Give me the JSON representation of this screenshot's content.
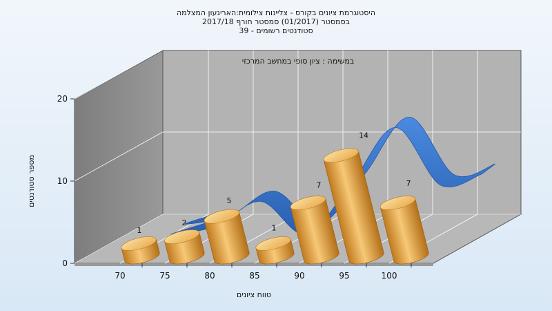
{
  "title_lines": [
    "היסטוגרמת ציונים בקורס - צליינות צילומית:האריגעון המצלמה",
    "בסמסטר (01/2017) סמסטר חורף 2017/18",
    "סטודנטים רשומים - 39"
  ],
  "chart_data": {
    "type": "bar",
    "title": "היסטוגרמת ציונים בקורס - צליינות צילומית:האריגעון המצלמה",
    "subtitle": "במשימה : ציון סופי במחשב המרכזי",
    "xlabel": "טווח ציונים",
    "ylabel": "מספר סטודנטים",
    "x_ticks": [
      "70",
      "75",
      "80",
      "85",
      "90",
      "95",
      "100"
    ],
    "y_ticks": [
      "0",
      "10",
      "20"
    ],
    "ylim": [
      0,
      20
    ],
    "values": [
      1,
      2,
      5,
      1,
      7,
      14,
      7
    ],
    "data_labels": [
      "1",
      "2",
      "5",
      "1",
      "7",
      "14",
      "7"
    ],
    "style": "3d-cylinder-with-curve",
    "grid": true,
    "colors": {
      "bar": "#e09a3a",
      "bar_top": "#f3c46e",
      "curve": "#2f6fc4",
      "wall": "#8c8c8c",
      "floor": "#b0b0b0"
    }
  }
}
